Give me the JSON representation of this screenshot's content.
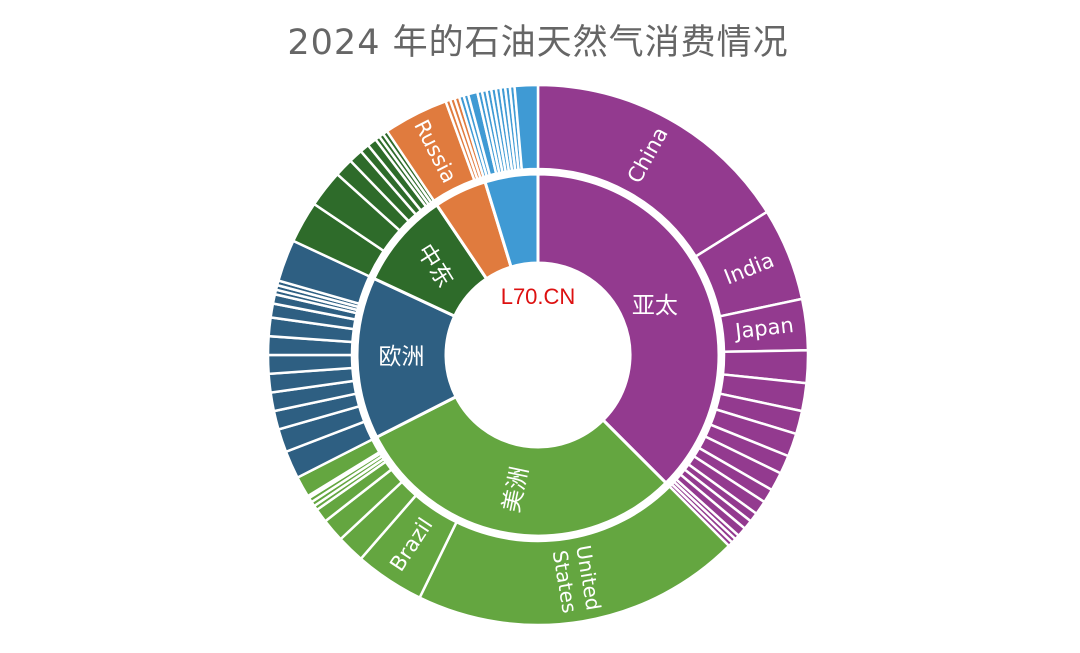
{
  "chart_data": {
    "type": "sunburst",
    "title": "2024 年的石油天然气消费情况",
    "unit": "share of total (degrees of 360, estimated)",
    "regions": [
      {
        "name": "亚太",
        "show_label": true,
        "color": "#933a8f",
        "children": [
          {
            "name": "China",
            "value": 58,
            "label": true
          },
          {
            "name": "India",
            "value": 20,
            "label": true
          },
          {
            "name": "Japan",
            "value": 11,
            "label": true
          },
          {
            "name": "",
            "value": 7
          },
          {
            "name": "",
            "value": 6
          },
          {
            "name": "",
            "value": 5
          },
          {
            "name": "",
            "value": 5
          },
          {
            "name": "",
            "value": 4
          },
          {
            "name": "",
            "value": 4
          },
          {
            "name": "",
            "value": 3
          },
          {
            "name": "",
            "value": 3
          },
          {
            "name": "",
            "value": 2
          },
          {
            "name": "",
            "value": 2
          },
          {
            "name": "",
            "value": 2
          },
          {
            "name": "",
            "value": 1
          },
          {
            "name": "",
            "value": 1
          },
          {
            "name": "",
            "value": 1
          }
        ]
      },
      {
        "name": "美洲",
        "show_label": true,
        "color": "#64a640",
        "children": [
          {
            "name": "United States",
            "value": 71,
            "label": true
          },
          {
            "name": "Brazil",
            "value": 15,
            "label": true
          },
          {
            "name": "",
            "value": 6
          },
          {
            "name": "",
            "value": 5
          },
          {
            "name": "",
            "value": 3
          },
          {
            "name": "",
            "value": 1
          },
          {
            "name": "",
            "value": 1
          },
          {
            "name": "",
            "value": 1
          },
          {
            "name": "",
            "value": 0.5
          },
          {
            "name": "",
            "value": 4.5
          }
        ]
      },
      {
        "name": "欧洲",
        "show_label": true,
        "color": "#2e5f82",
        "children": [
          {
            "name": "",
            "value": 6
          },
          {
            "name": "",
            "value": 5
          },
          {
            "name": "",
            "value": 4
          },
          {
            "name": "",
            "value": 4
          },
          {
            "name": "",
            "value": 4
          },
          {
            "name": "",
            "value": 4
          },
          {
            "name": "",
            "value": 4
          },
          {
            "name": "",
            "value": 4
          },
          {
            "name": "",
            "value": 3
          },
          {
            "name": "",
            "value": 2
          },
          {
            "name": "",
            "value": 1
          },
          {
            "name": "",
            "value": 1
          },
          {
            "name": "",
            "value": 1
          },
          {
            "name": "",
            "value": 9
          }
        ]
      },
      {
        "name": "中东",
        "show_label": true,
        "color": "#2e6b2a",
        "children": [
          {
            "name": "",
            "value": 9
          },
          {
            "name": "",
            "value": 8
          },
          {
            "name": "",
            "value": 4
          },
          {
            "name": "",
            "value": 3
          },
          {
            "name": "",
            "value": 2
          },
          {
            "name": "",
            "value": 2
          },
          {
            "name": "",
            "value": 1
          },
          {
            "name": "",
            "value": 1
          },
          {
            "name": "",
            "value": 1
          }
        ]
      },
      {
        "name": "",
        "show_label": false,
        "color": "#e07b3e",
        "children": [
          {
            "name": "Russia",
            "value": 14,
            "label": true
          },
          {
            "name": "",
            "value": 1
          },
          {
            "name": "",
            "value": 1
          },
          {
            "name": "",
            "value": 1
          }
        ]
      },
      {
        "name": "",
        "show_label": false,
        "color": "#3f9ad4",
        "children": [
          {
            "name": "",
            "value": 1
          },
          {
            "name": "",
            "value": 1
          },
          {
            "name": "",
            "value": 2
          },
          {
            "name": "",
            "value": 1
          },
          {
            "name": "",
            "value": 1
          },
          {
            "name": "",
            "value": 1
          },
          {
            "name": "",
            "value": 1
          },
          {
            "name": "",
            "value": 1
          },
          {
            "name": "",
            "value": 1
          },
          {
            "name": "",
            "value": 1
          },
          {
            "name": "",
            "value": 1
          },
          {
            "name": "",
            "value": 5
          }
        ]
      }
    ]
  },
  "watermark": "L70.CN"
}
